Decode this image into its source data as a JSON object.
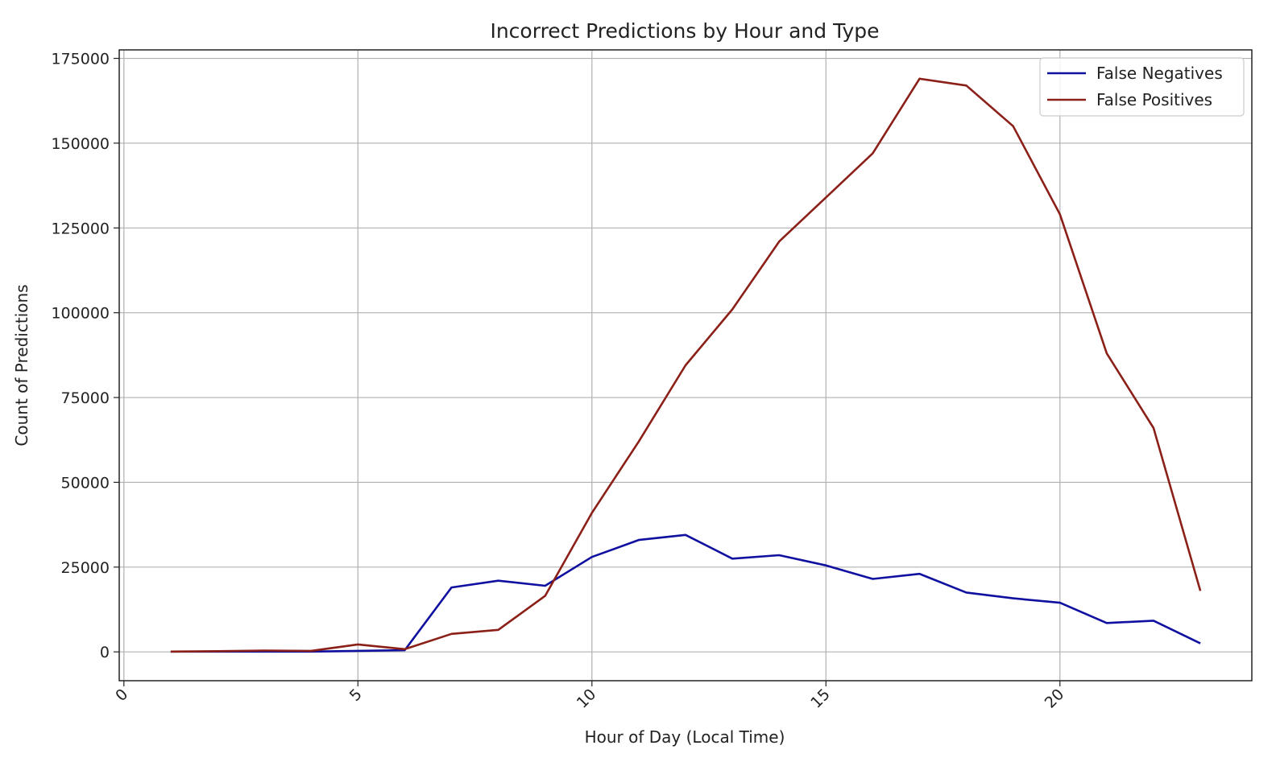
{
  "chart_data": {
    "type": "line",
    "title": "Incorrect Predictions by Hour and Type",
    "xlabel": "Hour of Day (Local Time)",
    "ylabel": "Count of Predictions",
    "xlim": [
      -0.1,
      24.1
    ],
    "ylim": [
      -8500,
      177500
    ],
    "xticks": [
      0,
      5,
      10,
      15,
      20
    ],
    "yticks": [
      0,
      25000,
      50000,
      75000,
      100000,
      125000,
      150000,
      175000
    ],
    "grid": true,
    "legend_position": "top-right",
    "x": [
      1,
      2,
      3,
      4,
      5,
      6,
      7,
      8,
      9,
      10,
      11,
      12,
      13,
      14,
      15,
      16,
      17,
      18,
      19,
      20,
      21,
      22,
      23
    ],
    "series": [
      {
        "name": "False Negatives",
        "color": "#1010a0",
        "values": [
          100,
          100,
          100,
          100,
          300,
          500,
          19000,
          21000,
          19500,
          28000,
          33000,
          34500,
          27500,
          28500,
          25500,
          21500,
          23000,
          17500,
          15800,
          14500,
          8500,
          9200,
          2500
        ]
      },
      {
        "name": "False Positives",
        "color": "#8b2018",
        "values": [
          100,
          200,
          400,
          300,
          2200,
          800,
          5300,
          6500,
          16500,
          41000,
          62000,
          84500,
          101000,
          121000,
          134000,
          147000,
          169000,
          167000,
          155000,
          129000,
          88000,
          66000,
          18000
        ]
      }
    ]
  }
}
